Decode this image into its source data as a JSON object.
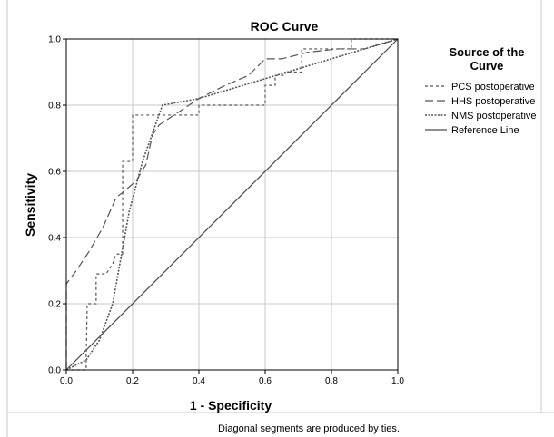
{
  "chart_data": {
    "type": "line",
    "title": "ROC Curve",
    "xlabel": "1 - Specificity",
    "ylabel": "Sensitivity",
    "xlim": [
      0,
      1
    ],
    "ylim": [
      0,
      1
    ],
    "grid": true,
    "x_ticks": [
      "0.0",
      "0.2",
      "0.4",
      "0.6",
      "0.8",
      "1.0"
    ],
    "y_ticks": [
      "0.0",
      "0.2",
      "0.4",
      "0.6",
      "0.8",
      "1.0"
    ],
    "legend": {
      "title": "Source of the Curve",
      "placement": "right"
    },
    "footnote": "Diagonal segments are produced by ties.",
    "series": [
      {
        "name": "PCS postoperative",
        "style": "short-dash",
        "points": [
          [
            0,
            0
          ],
          [
            0.06,
            0
          ],
          [
            0.06,
            0.03
          ],
          [
            0.063,
            0.2
          ],
          [
            0.09,
            0.2
          ],
          [
            0.09,
            0.29
          ],
          [
            0.12,
            0.29
          ],
          [
            0.14,
            0.32
          ],
          [
            0.15,
            0.35
          ],
          [
            0.17,
            0.35
          ],
          [
            0.17,
            0.63
          ],
          [
            0.2,
            0.63
          ],
          [
            0.2,
            0.77
          ],
          [
            0.4,
            0.77
          ],
          [
            0.4,
            0.8
          ],
          [
            0.6,
            0.8
          ],
          [
            0.6,
            0.86
          ],
          [
            0.63,
            0.86
          ],
          [
            0.63,
            0.89
          ],
          [
            0.66,
            0.89
          ],
          [
            0.66,
            0.9
          ],
          [
            0.71,
            0.9
          ],
          [
            0.71,
            0.97
          ],
          [
            0.86,
            0.97
          ],
          [
            0.86,
            1.0
          ],
          [
            1.0,
            1.0
          ]
        ]
      },
      {
        "name": "HHS postoperative",
        "style": "long-dash",
        "points": [
          [
            0,
            0
          ],
          [
            0,
            0.26
          ],
          [
            0.03,
            0.3
          ],
          [
            0.07,
            0.36
          ],
          [
            0.11,
            0.43
          ],
          [
            0.15,
            0.52
          ],
          [
            0.21,
            0.57
          ],
          [
            0.24,
            0.62
          ],
          [
            0.26,
            0.71
          ],
          [
            0.28,
            0.74
          ],
          [
            0.31,
            0.76
          ],
          [
            0.4,
            0.82
          ],
          [
            0.48,
            0.86
          ],
          [
            0.55,
            0.89
          ],
          [
            0.6,
            0.94
          ],
          [
            0.65,
            0.94
          ],
          [
            0.73,
            0.96
          ],
          [
            0.82,
            0.97
          ],
          [
            0.9,
            0.97
          ],
          [
            1.0,
            1.0
          ]
        ]
      },
      {
        "name": "NMS postoperative",
        "style": "dotted",
        "points": [
          [
            0,
            0
          ],
          [
            0.06,
            0.03
          ],
          [
            0.1,
            0.09
          ],
          [
            0.14,
            0.2
          ],
          [
            0.19,
            0.48
          ],
          [
            0.23,
            0.63
          ],
          [
            0.29,
            0.8
          ],
          [
            0.4,
            0.82
          ],
          [
            0.6,
            0.88
          ],
          [
            0.8,
            0.94
          ],
          [
            1.0,
            1.0
          ]
        ]
      },
      {
        "name": "Reference Line",
        "style": "solid",
        "points": [
          [
            0,
            0
          ],
          [
            1,
            1
          ]
        ]
      }
    ]
  }
}
